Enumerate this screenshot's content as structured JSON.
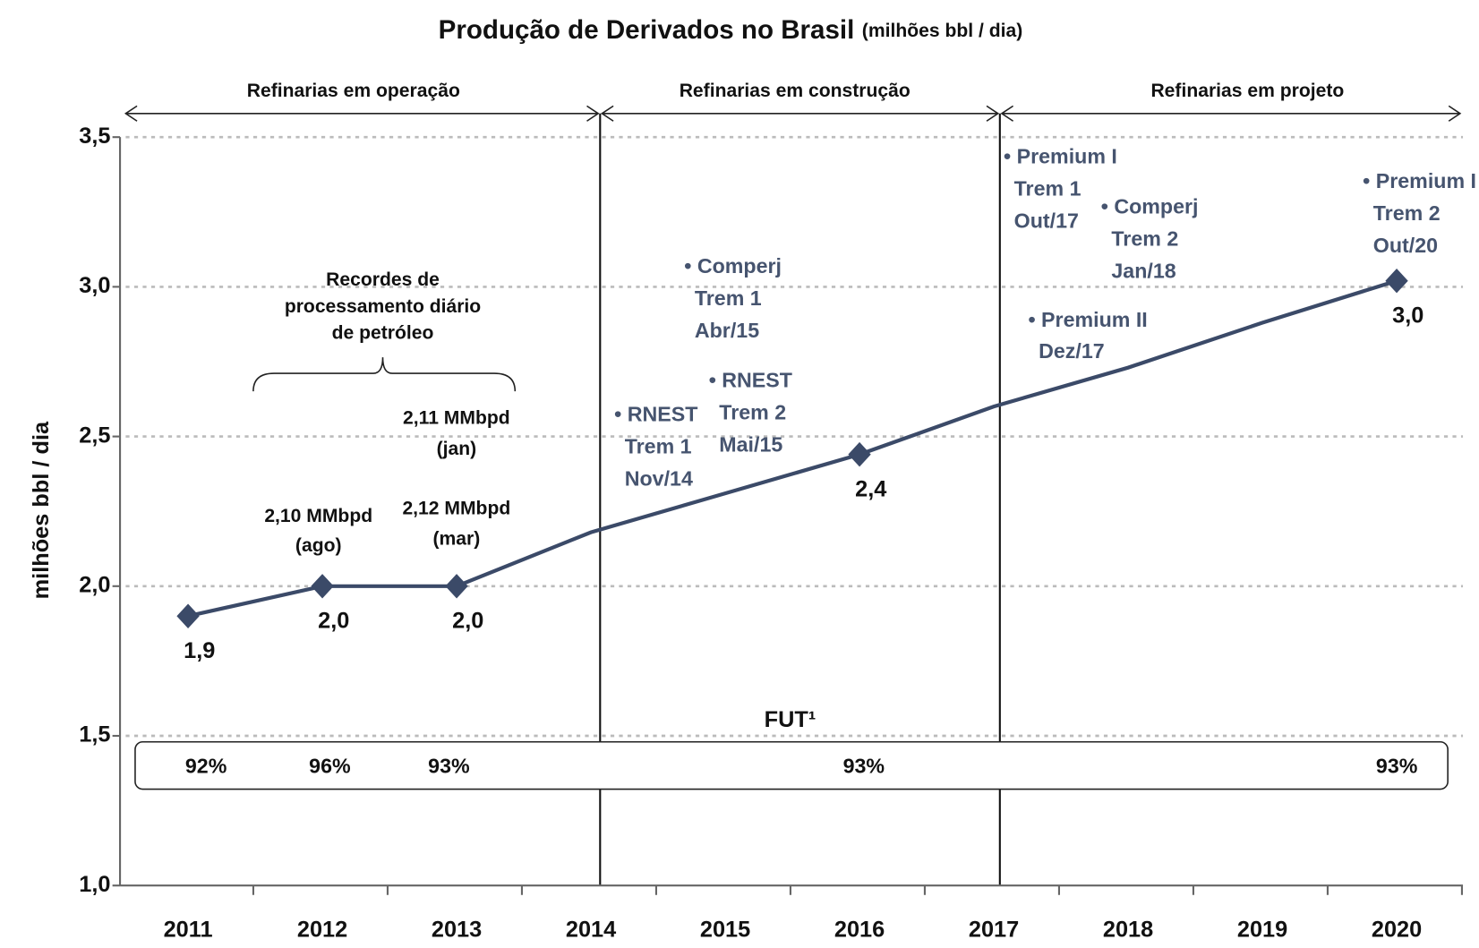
{
  "chart_data": {
    "type": "line",
    "title": "Produção de Derivados no Brasil",
    "subtitle": "(milhões bbl / dia)",
    "y_label": "milhões bbl / dia",
    "categories": [
      "2011",
      "2012",
      "2013",
      "2014",
      "2015",
      "2016",
      "2017",
      "2018",
      "2019",
      "2020"
    ],
    "series": [
      {
        "name": "Produção de Derivados",
        "color": "#3b4a68",
        "values": [
          1.9,
          2.0,
          2.0,
          2.18,
          2.31,
          2.44,
          2.6,
          2.73,
          2.88,
          3.02
        ],
        "value_labels": [
          "1,9",
          "2,0",
          "2,0",
          null,
          null,
          "2,4",
          null,
          null,
          null,
          "3,0"
        ]
      }
    ],
    "ylim": [
      1.0,
      3.5
    ],
    "yticks": [
      {
        "value": 1.0,
        "label": "1,0"
      },
      {
        "value": 1.5,
        "label": "1,5"
      },
      {
        "value": 2.0,
        "label": "2,0"
      },
      {
        "value": 2.5,
        "label": "2,5"
      },
      {
        "value": 3.0,
        "label": "3,0"
      },
      {
        "value": 3.5,
        "label": "3,5"
      }
    ],
    "grid": true,
    "phases": [
      "Refinarias em operação",
      "Refinarias em construção",
      "Refinarias em projeto"
    ],
    "fut": {
      "label": "FUT¹",
      "values": [
        92,
        96,
        93,
        93,
        93
      ],
      "value_labels": [
        "92%",
        "96%",
        "93%",
        "93%",
        "93%"
      ]
    },
    "annotations": [
      {
        "lines": [
          "Recordes de",
          "processamento diário",
          "de petróleo"
        ]
      },
      {
        "lines": [
          "2,11 MMbpd",
          "(jan)"
        ]
      },
      {
        "lines": [
          "2,10 MMbpd",
          "(ago)"
        ]
      },
      {
        "lines": [
          "2,12 MMbpd",
          "(mar)"
        ]
      },
      {
        "lines": [
          "• RNEST",
          "Trem 1",
          "Nov/14"
        ]
      },
      {
        "lines": [
          "• Comperj",
          "Trem 1",
          "Abr/15"
        ]
      },
      {
        "lines": [
          "• RNEST",
          "Trem 2",
          "Mai/15"
        ]
      },
      {
        "lines": [
          "• Premium I",
          "Trem 1",
          "Out/17"
        ]
      },
      {
        "lines": [
          "• Comperj",
          "Trem 2",
          "Jan/18"
        ]
      },
      {
        "lines": [
          "• Premium II",
          "Dez/17"
        ]
      },
      {
        "lines": [
          "• Premium I",
          "Trem 2",
          "Out/20"
        ]
      }
    ]
  }
}
